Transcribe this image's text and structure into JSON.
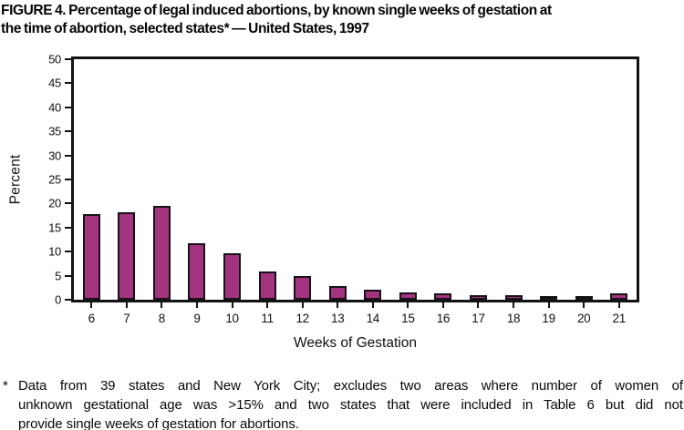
{
  "title": {
    "line1": "FIGURE 4. Percentage of legal induced abortions, by known single weeks of gestation at",
    "line2": "the time of abortion, selected states* — United States, 1997"
  },
  "chart_data": {
    "type": "bar",
    "title": "FIGURE 4. Percentage of legal induced abortions, by known single weeks of gestation at the time of abortion, selected states* — United States, 1997",
    "categories": [
      "6",
      "7",
      "8",
      "9",
      "10",
      "11",
      "12",
      "13",
      "14",
      "15",
      "16",
      "17",
      "18",
      "19",
      "20",
      "21"
    ],
    "values": [
      17.8,
      18.1,
      19.6,
      11.8,
      9.7,
      5.9,
      5.0,
      2.9,
      2.1,
      1.5,
      1.3,
      0.9,
      0.9,
      0.7,
      0.7,
      1.4
    ],
    "xlabel": "Weeks of Gestation",
    "ylabel": "Percent",
    "ylim": [
      0,
      50
    ],
    "y_ticks": [
      0,
      5,
      10,
      15,
      20,
      25,
      30,
      35,
      40,
      45,
      50
    ],
    "grid": false,
    "legend_position": "none",
    "bar_color": "#A3337E",
    "bar_border_color": "#17121A",
    "axis_color": "#121212"
  },
  "footnote": {
    "marker": "*",
    "lines": [
      "Data from 39 states and New York City; excludes two areas where number of women of",
      "unknown gestational age was >15% and two states that were included in Table 6 but did not",
      "provide single weeks of gestation for abortions."
    ]
  }
}
